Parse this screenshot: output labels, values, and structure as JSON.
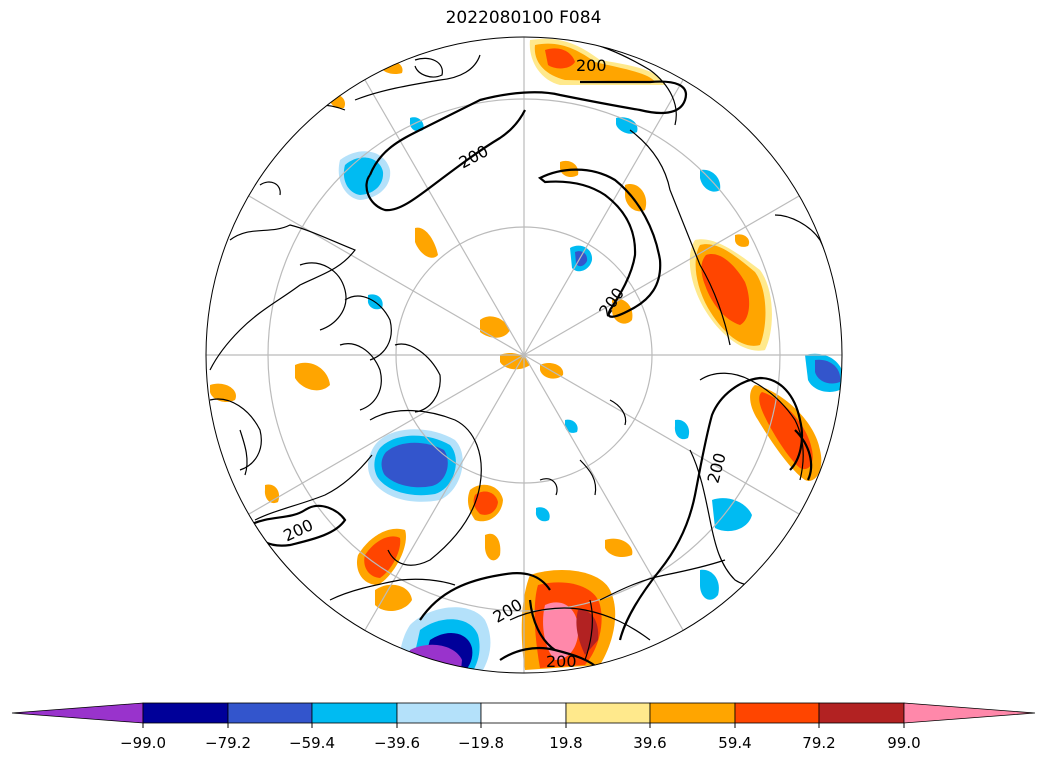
{
  "title": "2022080100 F084",
  "contour_labels": [
    "200",
    "200",
    "200",
    "200",
    "200",
    "200",
    "200"
  ],
  "colorbar": {
    "colors": [
      "#9933cc",
      "#000099",
      "#3355cc",
      "#00bbf2",
      "#b4e1fa",
      "#ffffff",
      "#ffe98c",
      "#ffa500",
      "#ff4500",
      "#b22222",
      "#ff88aa"
    ],
    "ticks": [
      "−99.0",
      "−79.2",
      "−59.4",
      "−39.6",
      "−19.8",
      "19.8",
      "39.6",
      "59.4",
      "79.2",
      "99.0"
    ]
  },
  "colors": {
    "outline": "#000000",
    "grid": "#bbbbbb"
  }
}
